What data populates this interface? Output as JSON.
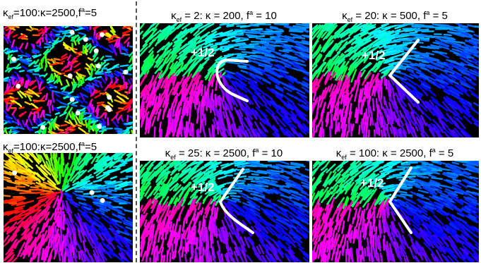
{
  "left_top": {
    "kappa": "κ",
    "ef": "ef",
    "eq1": "=100:",
    "kappa2": "κ",
    "eq2": "=2500,",
    "f": "f",
    "a": "a",
    "eq3": "=5"
  },
  "left_bottom": {
    "kappa": "κ",
    "ef": "ef",
    "eq1": "=100:",
    "kappa2": "κ",
    "eq2": "=2500,",
    "f": "f",
    "a": "a",
    "eq3": "=5"
  },
  "panels": [
    {
      "kappa": "κ",
      "ef": "ef",
      "eq1": " = 2: ",
      "kappa2": "κ",
      "eq2": " = 200, ",
      "f": "f",
      "a": "a",
      "eq3": " = 10",
      "defect": "+1/2"
    },
    {
      "kappa": "κ",
      "ef": "ef",
      "eq1": " = 20: ",
      "kappa2": "κ",
      "eq2": " = 500, ",
      "f": "f",
      "a": "a",
      "eq3": " = 5",
      "defect": "+1/2"
    },
    {
      "kappa": "κ",
      "ef": "ef",
      "eq1": " = 25: ",
      "kappa2": "κ",
      "eq2": " = 2500, ",
      "f": "f",
      "a": "a",
      "eq3": " = 10",
      "defect": "+1/2"
    },
    {
      "kappa": "κ",
      "ef": "ef",
      "eq1": " = 100: ",
      "kappa2": "κ",
      "eq2": " = 2500, ",
      "f": "f",
      "a": "a",
      "eq3": " = 5",
      "defect": "+1/2"
    }
  ]
}
